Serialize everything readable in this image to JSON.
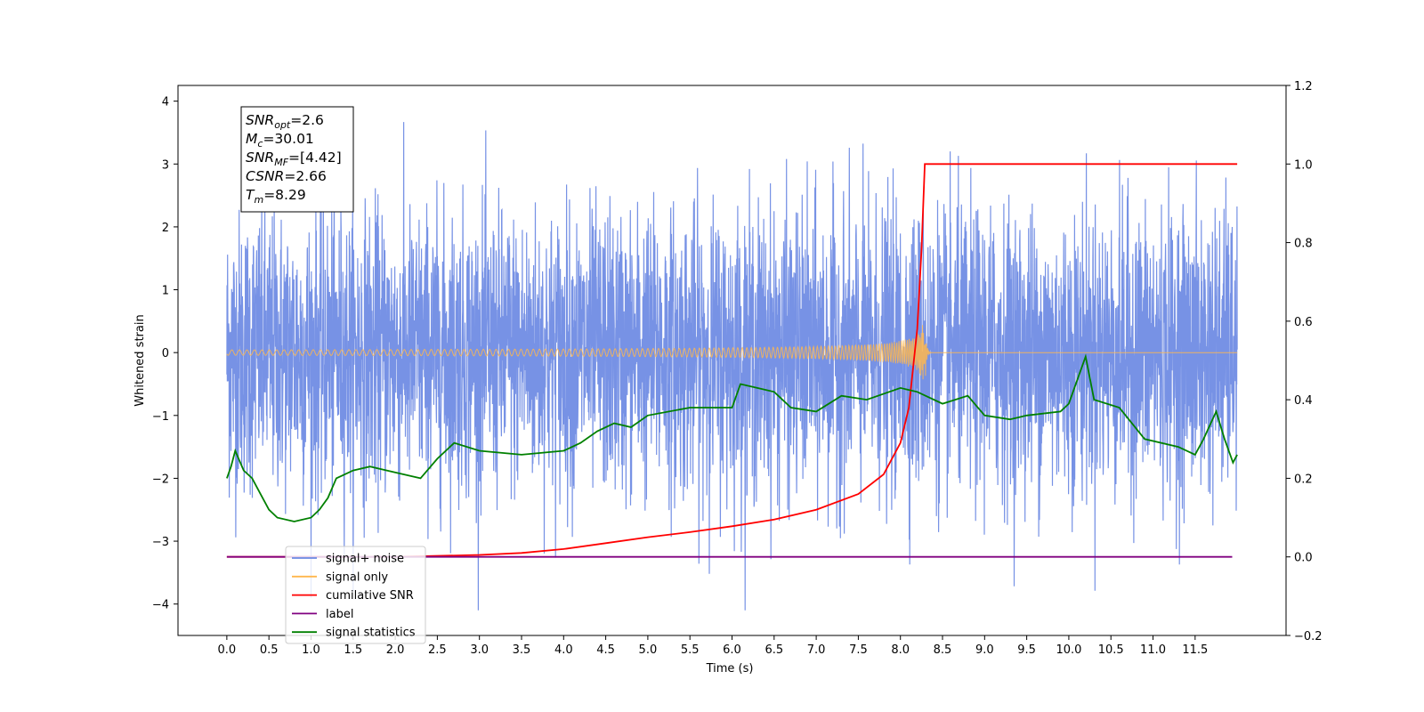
{
  "chart_data": {
    "type": "line",
    "xlabel": "Time (s)",
    "ylabel": "Whitened strain",
    "x_ticks": [
      "0.0",
      "0.5",
      "1.0",
      "1.5",
      "2.0",
      "2.5",
      "3.0",
      "3.5",
      "4.0",
      "4.5",
      "5.0",
      "5.5",
      "6.0",
      "6.5",
      "7.0",
      "7.5",
      "8.0",
      "8.5",
      "9.0",
      "9.5",
      "10.0",
      "10.5",
      "11.0",
      "11.5"
    ],
    "left_y_ticks": [
      "4",
      "3",
      "2",
      "1",
      "0",
      "−1",
      "−2",
      "−3",
      "−4"
    ],
    "right_y_ticks": [
      "1.2",
      "1.0",
      "0.8",
      "0.6",
      "0.4",
      "0.2",
      "0.0",
      "−0.2"
    ],
    "xlim": [
      -0.58,
      12.58
    ],
    "left_ylim": [
      -4.5,
      4.25
    ],
    "right_ylim": [
      -0.2,
      1.2
    ],
    "merger_time": 8.29,
    "stats_box": [
      {
        "sym": "SNR",
        "sub": "opt",
        "val": "=2.6"
      },
      {
        "sym": "M",
        "sub": "c",
        "val": "=30.01"
      },
      {
        "sym": "SNR",
        "sub": "MF",
        "val": "=[4.42]"
      },
      {
        "sym": "CSNR",
        "sub": "",
        "val": "=2.66"
      },
      {
        "sym": "T",
        "sub": "m",
        "val": "=8.29"
      }
    ],
    "series": [
      {
        "name": "signal+ noise",
        "color": "#6b89e3",
        "axis": "left",
        "description_range": [
          -4.1,
          3.85
        ],
        "x_range": [
          0,
          12
        ]
      },
      {
        "name": "signal only",
        "color": "#ffb74d",
        "axis": "left",
        "x_range": [
          0,
          12
        ],
        "peak_amplitude": 0.65
      },
      {
        "name": "cumilative SNR",
        "color": "#ff0000",
        "axis": "right",
        "points": [
          [
            0,
            0
          ],
          [
            2.0,
            0.0
          ],
          [
            3.0,
            0.005
          ],
          [
            3.5,
            0.01
          ],
          [
            4.0,
            0.02
          ],
          [
            4.5,
            0.035
          ],
          [
            5.0,
            0.05
          ],
          [
            5.5,
            0.063
          ],
          [
            6.0,
            0.078
          ],
          [
            6.5,
            0.095
          ],
          [
            7.0,
            0.12
          ],
          [
            7.5,
            0.16
          ],
          [
            7.8,
            0.21
          ],
          [
            8.0,
            0.29
          ],
          [
            8.1,
            0.38
          ],
          [
            8.2,
            0.58
          ],
          [
            8.25,
            0.78
          ],
          [
            8.29,
            1.0
          ],
          [
            12,
            1.0
          ]
        ]
      },
      {
        "name": "label",
        "color": "#800080",
        "axis": "right",
        "points": [
          [
            0,
            0.0
          ],
          [
            11.94,
            0.0
          ]
        ]
      },
      {
        "name": "signal statistics",
        "color": "#008000",
        "axis": "right",
        "points": [
          [
            0,
            0.2
          ],
          [
            0.05,
            0.23
          ],
          [
            0.1,
            0.27
          ],
          [
            0.2,
            0.22
          ],
          [
            0.3,
            0.2
          ],
          [
            0.4,
            0.16
          ],
          [
            0.5,
            0.12
          ],
          [
            0.6,
            0.1
          ],
          [
            0.8,
            0.09
          ],
          [
            1.0,
            0.1
          ],
          [
            1.1,
            0.12
          ],
          [
            1.2,
            0.15
          ],
          [
            1.3,
            0.2
          ],
          [
            1.5,
            0.22
          ],
          [
            1.7,
            0.23
          ],
          [
            1.9,
            0.22
          ],
          [
            2.1,
            0.21
          ],
          [
            2.3,
            0.2
          ],
          [
            2.5,
            0.25
          ],
          [
            2.7,
            0.29
          ],
          [
            3.0,
            0.27
          ],
          [
            3.5,
            0.26
          ],
          [
            4.0,
            0.27
          ],
          [
            4.2,
            0.29
          ],
          [
            4.4,
            0.32
          ],
          [
            4.6,
            0.34
          ],
          [
            4.8,
            0.33
          ],
          [
            5.0,
            0.36
          ],
          [
            5.5,
            0.38
          ],
          [
            6.0,
            0.38
          ],
          [
            6.1,
            0.44
          ],
          [
            6.3,
            0.43
          ],
          [
            6.5,
            0.42
          ],
          [
            6.7,
            0.38
          ],
          [
            7.0,
            0.37
          ],
          [
            7.3,
            0.41
          ],
          [
            7.6,
            0.4
          ],
          [
            8.0,
            0.43
          ],
          [
            8.2,
            0.42
          ],
          [
            8.5,
            0.39
          ],
          [
            8.8,
            0.41
          ],
          [
            9.0,
            0.36
          ],
          [
            9.3,
            0.35
          ],
          [
            9.5,
            0.36
          ],
          [
            9.9,
            0.37
          ],
          [
            10.0,
            0.39
          ],
          [
            10.2,
            0.51
          ],
          [
            10.3,
            0.4
          ],
          [
            10.6,
            0.38
          ],
          [
            10.9,
            0.3
          ],
          [
            11.3,
            0.28
          ],
          [
            11.5,
            0.26
          ],
          [
            11.6,
            0.3
          ],
          [
            11.75,
            0.37
          ],
          [
            11.85,
            0.3
          ],
          [
            11.95,
            0.24
          ],
          [
            12.0,
            0.26
          ]
        ]
      }
    ]
  }
}
